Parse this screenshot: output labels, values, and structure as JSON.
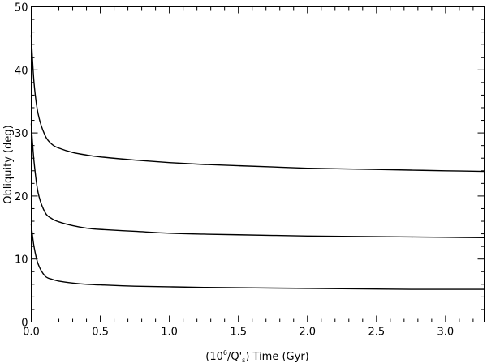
{
  "chart_data": {
    "type": "line",
    "xlabel_parts": [
      "(10",
      "6",
      "/Q'",
      "s",
      ") Time (Gyr)"
    ],
    "ylabel": "Obliquity (deg)",
    "xlim": [
      0,
      3.28
    ],
    "ylim": [
      0,
      50
    ],
    "xticks": [
      0.0,
      0.5,
      1.0,
      1.5,
      2.0,
      2.5,
      3.0
    ],
    "xtick_labels": [
      "0.0",
      "0.5",
      "1.0",
      "1.5",
      "2.0",
      "2.5",
      "3.0"
    ],
    "yticks": [
      0,
      10,
      20,
      30,
      40,
      50
    ],
    "ytick_labels": [
      "0",
      "10",
      "20",
      "30",
      "40",
      "50"
    ],
    "grid": false,
    "series": [
      {
        "x": [
          0.0,
          0.02,
          0.05,
          0.1,
          0.15,
          0.2,
          0.3,
          0.4,
          0.5,
          0.75,
          1.0,
          1.25,
          1.5,
          1.75,
          2.0,
          2.25,
          2.5,
          2.75,
          3.0,
          3.28
        ],
        "values": [
          45.5,
          38.0,
          33.0,
          29.6,
          28.2,
          27.6,
          26.9,
          26.5,
          26.2,
          25.7,
          25.3,
          25.0,
          24.8,
          24.6,
          24.4,
          24.3,
          24.2,
          24.1,
          24.0,
          23.9
        ]
      },
      {
        "x": [
          0.0,
          0.02,
          0.05,
          0.1,
          0.15,
          0.2,
          0.3,
          0.4,
          0.5,
          0.75,
          1.0,
          1.25,
          1.5,
          1.75,
          2.0,
          2.25,
          2.5,
          2.75,
          3.0,
          3.28
        ],
        "values": [
          31.5,
          25.5,
          20.5,
          17.4,
          16.4,
          15.9,
          15.3,
          14.9,
          14.7,
          14.4,
          14.1,
          13.95,
          13.85,
          13.75,
          13.65,
          13.6,
          13.55,
          13.5,
          13.45,
          13.4
        ]
      },
      {
        "x": [
          0.0,
          0.02,
          0.05,
          0.1,
          0.15,
          0.2,
          0.3,
          0.4,
          0.5,
          0.75,
          1.0,
          1.25,
          1.5,
          1.75,
          2.0,
          2.25,
          2.5,
          2.75,
          3.0,
          3.28
        ],
        "values": [
          15.5,
          12.0,
          9.2,
          7.3,
          6.8,
          6.5,
          6.2,
          6.0,
          5.9,
          5.7,
          5.6,
          5.5,
          5.45,
          5.4,
          5.35,
          5.3,
          5.25,
          5.2,
          5.2,
          5.2
        ]
      }
    ]
  }
}
